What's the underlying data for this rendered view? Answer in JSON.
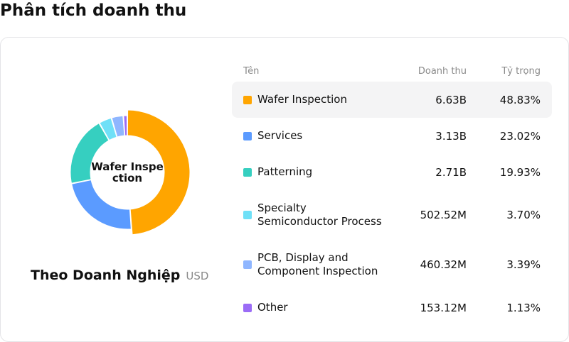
{
  "title": "Phân tích doanh thu",
  "donut_center": "Wafer Inspection",
  "caption": {
    "company": "Theo Doanh Nghiệp",
    "unit": "USD"
  },
  "table_header": {
    "name": "Tên",
    "revenue": "Doanh thu",
    "share": "Tỷ trọng"
  },
  "rows": [
    {
      "name": "Wafer Inspection",
      "revenue": "6.63B",
      "share": "48.83%",
      "color": "#ffa500"
    },
    {
      "name": "Services",
      "revenue": "3.13B",
      "share": "23.02%",
      "color": "#5b9bff"
    },
    {
      "name": "Patterning",
      "revenue": "2.71B",
      "share": "19.93%",
      "color": "#36cfc0"
    },
    {
      "name": "Specialty Semiconductor Process",
      "revenue": "502.52M",
      "share": "3.70%",
      "color": "#6fe0f7"
    },
    {
      "name": "PCB, Display and Component Inspection",
      "revenue": "460.32M",
      "share": "3.39%",
      "color": "#8fb6ff"
    },
    {
      "name": "Other",
      "revenue": "153.12M",
      "share": "1.13%",
      "color": "#9b6cf6"
    }
  ],
  "chart_data": {
    "type": "pie",
    "variant": "donut",
    "categories": [
      "Wafer Inspection",
      "Services",
      "Patterning",
      "Specialty Semiconductor Process",
      "PCB, Display and Component Inspection",
      "Other"
    ],
    "values": [
      48.83,
      23.02,
      19.93,
      3.7,
      3.39,
      1.13
    ],
    "colors": [
      "#ffa500",
      "#5b9bff",
      "#36cfc0",
      "#6fe0f7",
      "#8fb6ff",
      "#9b6cf6"
    ],
    "highlighted": "Wafer Inspection"
  }
}
